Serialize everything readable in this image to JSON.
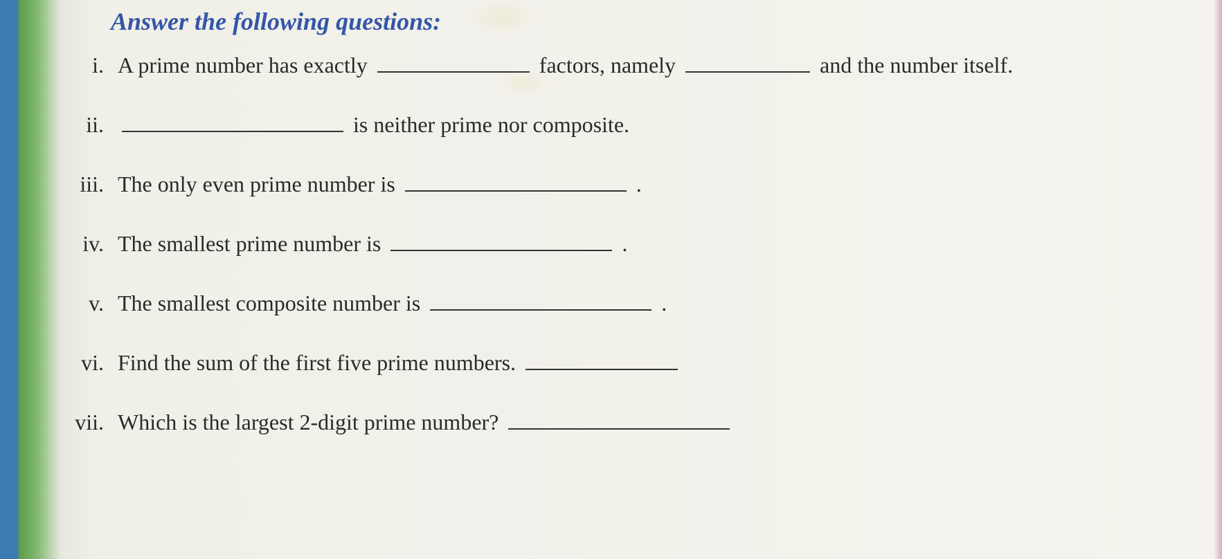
{
  "heading": "Answer the following questions:",
  "questions": [
    {
      "marker": "i.",
      "parts": [
        {
          "type": "text",
          "value": "A prime number has exactly "
        },
        {
          "type": "blank",
          "size": "med"
        },
        {
          "type": "text",
          "value": " factors, namely "
        },
        {
          "type": "blank",
          "size": "sm"
        },
        {
          "type": "text",
          "value": "and the number itself."
        }
      ]
    },
    {
      "marker": "ii.",
      "parts": [
        {
          "type": "blank",
          "size": "lg"
        },
        {
          "type": "text",
          "value": " is neither prime nor composite."
        }
      ]
    },
    {
      "marker": "iii.",
      "parts": [
        {
          "type": "text",
          "value": "The only even prime number is "
        },
        {
          "type": "blank",
          "size": "lg"
        },
        {
          "type": "text",
          "value": "."
        }
      ]
    },
    {
      "marker": "iv.",
      "parts": [
        {
          "type": "text",
          "value": "The smallest prime number is "
        },
        {
          "type": "blank",
          "size": "lg"
        },
        {
          "type": "text",
          "value": "."
        }
      ]
    },
    {
      "marker": "v.",
      "parts": [
        {
          "type": "text",
          "value": "The smallest composite number is "
        },
        {
          "type": "blank",
          "size": "lg"
        },
        {
          "type": "text",
          "value": "."
        }
      ]
    },
    {
      "marker": "vi.",
      "parts": [
        {
          "type": "text",
          "value": "Find the sum of the first five prime numbers. "
        },
        {
          "type": "blank",
          "size": "med"
        }
      ]
    },
    {
      "marker": "vii.",
      "parts": [
        {
          "type": "text",
          "value": "Which is the largest 2-digit prime number? "
        },
        {
          "type": "blank",
          "size": "lg"
        }
      ]
    }
  ]
}
